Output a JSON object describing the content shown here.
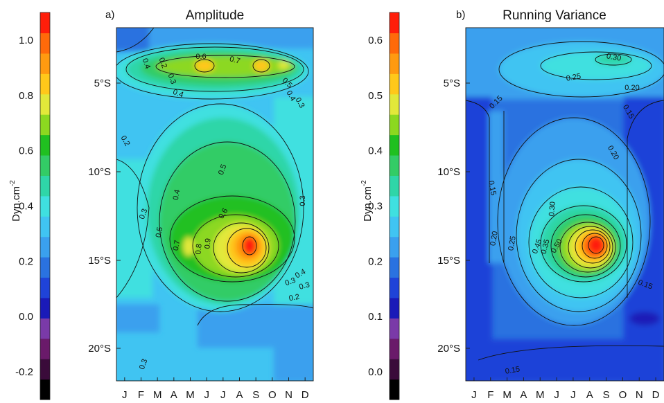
{
  "chart_data": [
    {
      "type": "heatmap",
      "panel": "a)",
      "title": "Amplitude",
      "colorbar": {
        "label": "Dyn.cm",
        "label_exponent": "-2",
        "min": -0.3,
        "max": 1.1,
        "ticks": [
          -0.2,
          0.0,
          0.2,
          0.4,
          0.6,
          0.8,
          1.0
        ],
        "tick_labels": [
          "-0.2",
          "0.0",
          "0.2",
          "0.4",
          "0.6",
          "0.8",
          "1.0"
        ],
        "colors": [
          "#000000",
          "#3a0b3a",
          "#6a1a6a",
          "#7a3aa8",
          "#1a1ab8",
          "#1f43d8",
          "#2a72e0",
          "#3aa0ee",
          "#40c4f2",
          "#3fe0e0",
          "#2fd6a8",
          "#33cc66",
          "#20c020",
          "#8cd820",
          "#e2e83a",
          "#ffc81a",
          "#ff9a10",
          "#ff6a0a",
          "#ff1e0a"
        ]
      },
      "x": {
        "tick_labels": [
          "J",
          "F",
          "M",
          "A",
          "M",
          "J",
          "J",
          "A",
          "S",
          "O",
          "N",
          "D"
        ]
      },
      "y": {
        "tick_labels": [
          "5°S",
          "10°S",
          "15°S",
          "20°S"
        ],
        "range": [
          "2°S",
          "22°S"
        ]
      },
      "contour_labels": [
        "0.6",
        "0.7",
        "0.2",
        "0.3",
        "0.4",
        "0.4",
        "0.5",
        "0.4",
        "0.3",
        "0.2",
        "0.3",
        "0.5",
        "0.4",
        "0.3",
        "0.5",
        "0.6",
        "0.7",
        "0.8",
        "0.9",
        "0.4",
        "0.3",
        "0.2",
        "0.3",
        "0.3"
      ]
    },
    {
      "type": "heatmap",
      "panel": "b)",
      "title": "Running Variance",
      "colorbar": {
        "label": "Dyn.cm",
        "label_exponent": "-2",
        "min": -0.05,
        "max": 0.65,
        "ticks": [
          0.0,
          0.1,
          0.2,
          0.3,
          0.4,
          0.5,
          0.6
        ],
        "tick_labels": [
          "0.0",
          "0.1",
          "0.2",
          "0.3",
          "0.4",
          "0.5",
          "0.6"
        ],
        "colors": [
          "#000000",
          "#3a0b3a",
          "#6a1a6a",
          "#7a3aa8",
          "#1a1ab8",
          "#1f43d8",
          "#2a72e0",
          "#3aa0ee",
          "#40c4f2",
          "#3fe0e0",
          "#2fd6a8",
          "#33cc66",
          "#20c020",
          "#8cd820",
          "#e2e83a",
          "#ffc81a",
          "#ff9a10",
          "#ff6a0a",
          "#ff1e0a"
        ]
      },
      "x": {
        "tick_labels": [
          "J",
          "F",
          "M",
          "A",
          "M",
          "J",
          "J",
          "A",
          "S",
          "O",
          "N",
          "D"
        ]
      },
      "y": {
        "tick_labels": [
          "5°S",
          "10°S",
          "15°S",
          "20°S"
        ],
        "range": [
          "2°S",
          "22°S"
        ]
      },
      "contour_labels": [
        "0.30",
        "0.25",
        "0.20",
        "0.15",
        "0.15",
        "0.20",
        "0.15",
        "0.20",
        "0.25",
        "0.30",
        "0.35",
        "0.45",
        "0.50",
        "0.15",
        "0.15"
      ]
    }
  ]
}
